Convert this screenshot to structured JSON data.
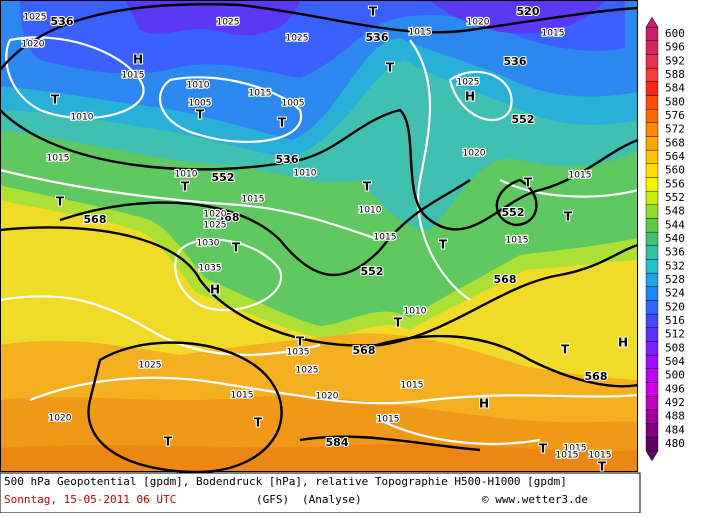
{
  "map": {
    "labels": [
      "536",
      "536",
      "536",
      "520",
      "552",
      "536",
      "552",
      "552",
      "568",
      "568",
      "552",
      "568",
      "568",
      "568",
      "584",
      "T",
      "T",
      "T",
      "T",
      "T",
      "T",
      "T",
      "T",
      "T",
      "T",
      "T",
      "T",
      "T",
      "T",
      "T",
      "T",
      "T",
      "T",
      "T",
      "H",
      "H",
      "H",
      "H",
      "H",
      "1025",
      "1020",
      "1025",
      "1025",
      "1015",
      "1020",
      "1015",
      "1015",
      "1010",
      "1015",
      "1005",
      "1005",
      "1010",
      "1025",
      "1015",
      "1020",
      "1010",
      "1010",
      "1015",
      "1015",
      "1010",
      "1015",
      "1015",
      "1020",
      "1025",
      "1030",
      "1035",
      "1010",
      "1035",
      "1025",
      "1025",
      "1015",
      "1020",
      "1015",
      "1020",
      "1015",
      "1015",
      "1015",
      "1015"
    ]
  },
  "legend": {
    "values": [
      600,
      596,
      592,
      588,
      584,
      580,
      576,
      572,
      568,
      564,
      560,
      556,
      552,
      548,
      544,
      540,
      536,
      532,
      528,
      524,
      520,
      516,
      512,
      508,
      504,
      500,
      496,
      492,
      488,
      484,
      480
    ],
    "colors": [
      "#c8206e",
      "#d82460",
      "#e83050",
      "#f43c3c",
      "#ff2a18",
      "#ff4c0c",
      "#ff6a00",
      "#ff8a00",
      "#ffa800",
      "#ffc400",
      "#ffe000",
      "#f6f400",
      "#c8ec10",
      "#92dc30",
      "#5ccc48",
      "#40c070",
      "#34c0a4",
      "#24c0d0",
      "#20a4e4",
      "#2086f4",
      "#3066ff",
      "#4448ff",
      "#6030ff",
      "#8020ff",
      "#a010ff",
      "#c000ff",
      "#d000e8",
      "#c000c0",
      "#a000a0",
      "#800080",
      "#600060"
    ]
  },
  "footer": {
    "line1": "500 hPa Geopotential [gpdm], Bodendruck [hPa], relative Topographie H500-H1000 [gpdm]",
    "date": "Sonntag, 15-05-2011  06 UTC",
    "model": "(GFS)",
    "analysis": "(Analyse)",
    "copyright": "© www.wetter3.de"
  }
}
